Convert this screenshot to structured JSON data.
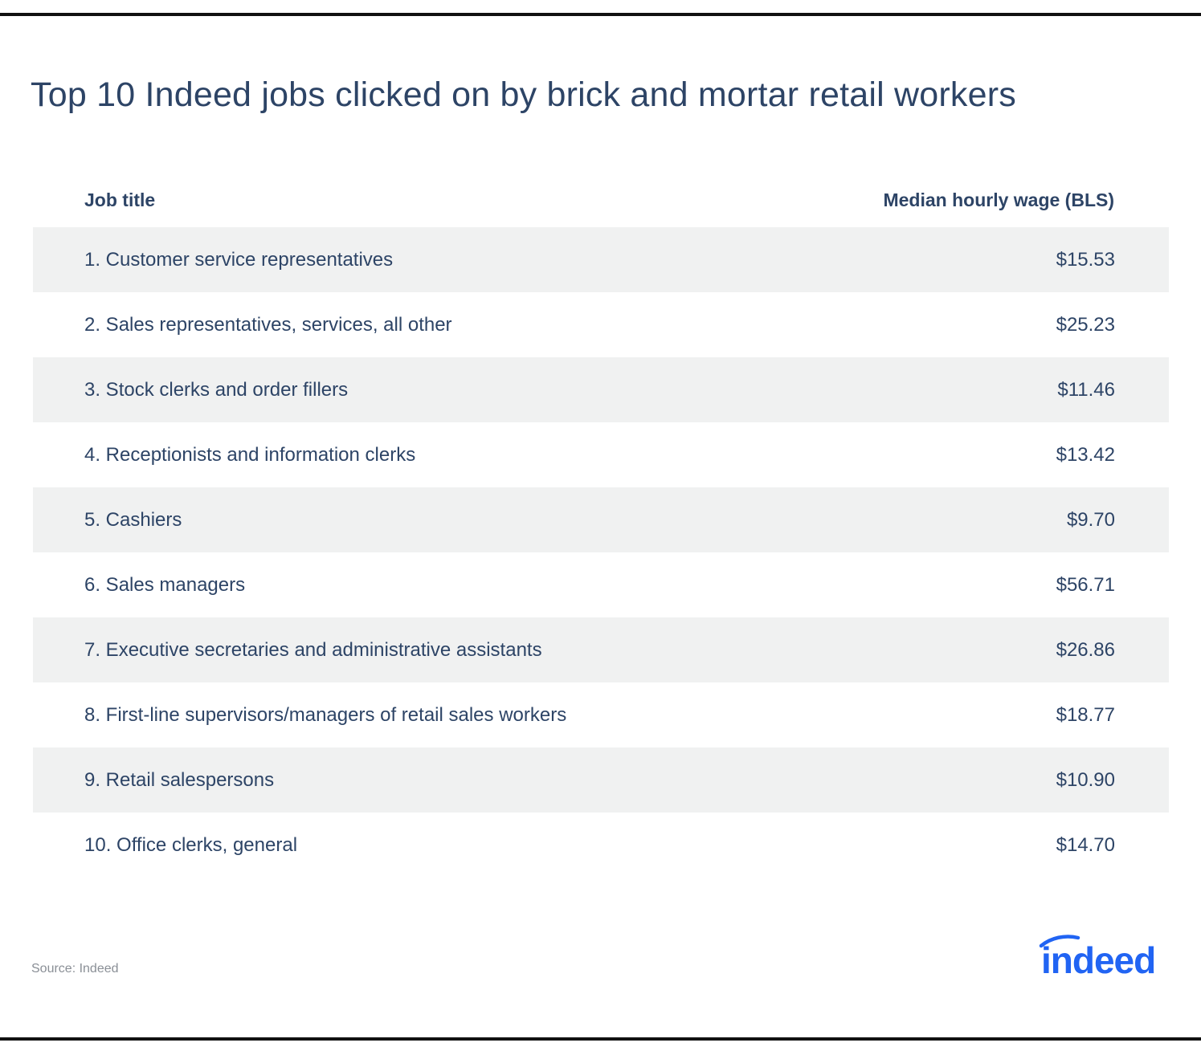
{
  "title": "Top 10 Indeed jobs clicked on by brick and mortar retail workers",
  "source": "Source: Indeed",
  "logo_text": "indeed",
  "colors": {
    "text": "#2d4466",
    "row_shade": "#f0f1f1",
    "logo": "#2164f3",
    "rule": "#111111"
  },
  "chart_data": {
    "type": "table",
    "columns": [
      "Job title",
      "Median hourly wage (BLS)"
    ],
    "rows": [
      {
        "job": "1. Customer service representatives",
        "wage": "$15.53"
      },
      {
        "job": "2. Sales representatives, services, all other",
        "wage": "$25.23"
      },
      {
        "job": "3. Stock clerks and order fillers",
        "wage": "$11.46"
      },
      {
        "job": "4. Receptionists and information clerks",
        "wage": "$13.42"
      },
      {
        "job": "5. Cashiers",
        "wage": "$9.70"
      },
      {
        "job": "6. Sales managers",
        "wage": "$56.71"
      },
      {
        "job": "7. Executive secretaries and administrative assistants",
        "wage": "$26.86"
      },
      {
        "job": "8. First-line supervisors/managers of retail sales workers",
        "wage": "$18.77"
      },
      {
        "job": "9. Retail salespersons",
        "wage": "$10.90"
      },
      {
        "job": "10. Office clerks, general",
        "wage": "$14.70"
      }
    ]
  }
}
